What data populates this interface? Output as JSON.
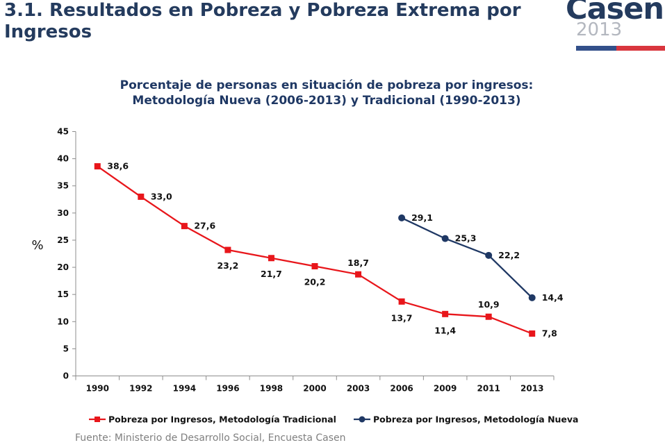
{
  "slide": {
    "title": "3.1. Resultados en Pobreza y Pobreza Extrema por Ingresos",
    "source": "Fuente: Ministerio de Desarrollo Social, Encuesta Casen"
  },
  "logo": {
    "word": "Casen",
    "year": "2013",
    "colors": {
      "text": "#243b5e",
      "year": "#b3b7bf",
      "bar_blue": "#33508a",
      "bar_red": "#d9363e"
    }
  },
  "chart_data": {
    "type": "line",
    "title_lines": [
      "Porcentaje de personas en situación de pobreza por ingresos:",
      "Metodología Nueva (2006-2013) y Tradicional (1990-2013)"
    ],
    "categories": [
      "1990",
      "1992",
      "1994",
      "1996",
      "1998",
      "2000",
      "2003",
      "2006",
      "2009",
      "2011",
      "2013"
    ],
    "ylabel": "%",
    "xlabel": "",
    "ylim": [
      0,
      45
    ],
    "yticks": [
      0,
      5,
      10,
      15,
      20,
      25,
      30,
      35,
      40,
      45
    ],
    "grid": false,
    "legend_position": "bottom",
    "series": [
      {
        "name": "Pobreza por Ingresos, Metodología Tradicional",
        "color": "#e8161b",
        "marker": "square",
        "values": [
          38.6,
          33.0,
          27.6,
          23.2,
          21.7,
          20.2,
          18.7,
          13.7,
          11.4,
          10.9,
          7.8
        ],
        "labels": [
          "38,6",
          "33,0",
          "27,6",
          "23,2",
          "21,7",
          "20,2",
          "18,7",
          "13,7",
          "11,4",
          "10,9",
          "7,8"
        ]
      },
      {
        "name": "Pobreza por Ingresos, Metodología Nueva",
        "color": "#1f3864",
        "marker": "circle",
        "values": [
          null,
          null,
          null,
          null,
          null,
          null,
          null,
          29.1,
          25.3,
          22.2,
          14.4
        ],
        "labels": [
          null,
          null,
          null,
          null,
          null,
          null,
          null,
          "29,1",
          "25,3",
          "22,2",
          "14,4"
        ]
      }
    ]
  }
}
